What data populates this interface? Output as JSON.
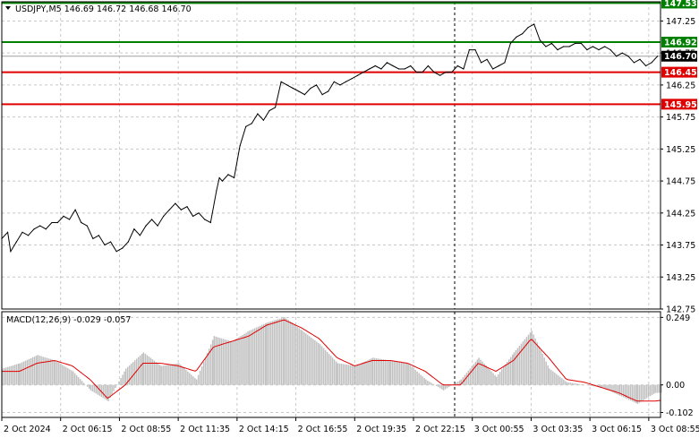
{
  "header": {
    "main_title": "USDJPY,M5  146.69 146.72 146.68 146.70",
    "macd_title": "MACD(12,26,9) -0.029 -0.057"
  },
  "colors": {
    "price_line": "#000000",
    "grid": "#c8c8c8",
    "green_level": "#008000",
    "red_level": "#e00000",
    "macd_hist": "#c0c0c0",
    "macd_signal": "#e00000",
    "current_price_bg": "#000000"
  },
  "chart_data": [
    {
      "type": "line",
      "symbol": "USDJPY",
      "timeframe": "M5",
      "ylim": [
        142.75,
        147.55
      ],
      "y_ticks": [
        "147.25",
        "146.75",
        "146.25",
        "145.75",
        "145.25",
        "144.75",
        "144.25",
        "143.75",
        "143.25",
        "142.75"
      ],
      "x_ticks": [
        "2 Oct 2024",
        "2 Oct 06:15",
        "2 Oct 08:55",
        "2 Oct 11:35",
        "2 Oct 14:15",
        "2 Oct 16:55",
        "2 Oct 19:35",
        "2 Oct 22:15",
        "3 Oct 00:55",
        "3 Oct 03:35",
        "3 Oct 06:15",
        "3 Oct 08:55"
      ],
      "x_range": [
        0,
        11.2
      ],
      "grid": true,
      "levels": [
        {
          "value": 147.53,
          "label": "147.53",
          "color": "green"
        },
        {
          "value": 146.92,
          "label": "146.92",
          "color": "green"
        },
        {
          "value": 146.45,
          "label": "146.45",
          "color": "red"
        },
        {
          "value": 145.95,
          "label": "145.95",
          "color": "red"
        }
      ],
      "current_price": {
        "value": 146.7,
        "label": "146.70"
      },
      "marker_x": 7.7,
      "x": [
        0,
        0.1,
        0.15,
        0.25,
        0.35,
        0.45,
        0.55,
        0.65,
        0.75,
        0.85,
        0.95,
        1.05,
        1.15,
        1.25,
        1.35,
        1.45,
        1.55,
        1.65,
        1.75,
        1.85,
        1.95,
        2.05,
        2.15,
        2.25,
        2.35,
        2.45,
        2.55,
        2.65,
        2.75,
        2.85,
        2.95,
        3.05,
        3.15,
        3.25,
        3.35,
        3.45,
        3.55,
        3.65,
        3.7,
        3.75,
        3.85,
        3.95,
        4.05,
        4.15,
        4.25,
        4.35,
        4.45,
        4.55,
        4.65,
        4.75,
        4.85,
        4.95,
        5.05,
        5.15,
        5.25,
        5.35,
        5.45,
        5.55,
        5.65,
        5.75,
        5.85,
        5.95,
        6.05,
        6.15,
        6.25,
        6.35,
        6.45,
        6.55,
        6.65,
        6.75,
        6.85,
        6.95,
        7.05,
        7.15,
        7.25,
        7.35,
        7.45,
        7.55,
        7.65,
        7.75,
        7.85,
        7.95,
        8.05,
        8.15,
        8.25,
        8.35,
        8.45,
        8.55,
        8.65,
        8.75,
        8.85,
        8.95,
        9.05,
        9.15,
        9.25,
        9.35,
        9.45,
        9.55,
        9.65,
        9.75,
        9.85,
        9.95,
        10.05,
        10.15,
        10.25,
        10.35,
        10.45,
        10.55,
        10.65,
        10.75,
        10.85,
        10.95,
        11.05,
        11.15
      ],
      "y": [
        143.85,
        143.95,
        143.65,
        143.8,
        143.95,
        143.9,
        144.0,
        144.05,
        144.0,
        144.1,
        144.1,
        144.2,
        144.15,
        144.3,
        144.1,
        144.05,
        143.85,
        143.9,
        143.75,
        143.8,
        143.65,
        143.7,
        143.8,
        144.0,
        143.9,
        144.05,
        144.15,
        144.05,
        144.2,
        144.3,
        144.4,
        144.3,
        144.35,
        144.2,
        144.25,
        144.15,
        144.1,
        144.6,
        144.8,
        144.75,
        144.85,
        144.8,
        145.3,
        145.6,
        145.65,
        145.8,
        145.7,
        145.85,
        145.9,
        146.3,
        146.25,
        146.2,
        146.15,
        146.1,
        146.2,
        146.25,
        146.1,
        146.15,
        146.3,
        146.25,
        146.3,
        146.35,
        146.4,
        146.45,
        146.5,
        146.55,
        146.5,
        146.6,
        146.55,
        146.5,
        146.5,
        146.55,
        146.45,
        146.45,
        146.55,
        146.45,
        146.4,
        146.45,
        146.45,
        146.55,
        146.5,
        146.8,
        146.8,
        146.6,
        146.65,
        146.5,
        146.55,
        146.6,
        146.9,
        147.0,
        147.05,
        147.15,
        147.2,
        146.95,
        146.85,
        146.9,
        146.8,
        146.85,
        146.85,
        146.9,
        146.9,
        146.8,
        146.85,
        146.8,
        146.85,
        146.8,
        146.7,
        146.75,
        146.7,
        146.6,
        146.65,
        146.55,
        146.6,
        146.7
      ]
    },
    {
      "type": "bar",
      "name": "MACD(12,26,9)",
      "ylim": [
        -0.12,
        0.27
      ],
      "y_ticks": [
        "0.249",
        "0.00",
        "-0.102"
      ],
      "grid": true,
      "x": [
        0,
        0.3,
        0.6,
        0.9,
        1.2,
        1.5,
        1.8,
        2.1,
        2.4,
        2.7,
        3.0,
        3.3,
        3.6,
        3.9,
        4.2,
        4.5,
        4.8,
        5.1,
        5.4,
        5.7,
        6.0,
        6.3,
        6.6,
        6.9,
        7.2,
        7.5,
        7.8,
        8.1,
        8.4,
        8.7,
        9.0,
        9.3,
        9.6,
        9.9,
        10.2,
        10.5,
        10.8,
        11.1,
        11.2
      ],
      "values": [
        0.06,
        0.08,
        0.11,
        0.09,
        0.05,
        -0.02,
        -0.06,
        0.06,
        0.12,
        0.07,
        0.08,
        0.02,
        0.18,
        0.16,
        0.2,
        0.23,
        0.25,
        0.2,
        0.15,
        0.08,
        0.07,
        0.1,
        0.09,
        0.08,
        0.02,
        -0.02,
        0.02,
        0.1,
        0.03,
        0.12,
        0.2,
        0.06,
        0.01,
        0.0,
        -0.01,
        -0.04,
        -0.07,
        -0.03,
        -0.029
      ],
      "signal": [
        0.05,
        0.05,
        0.08,
        0.09,
        0.07,
        0.02,
        -0.05,
        0.0,
        0.08,
        0.08,
        0.07,
        0.05,
        0.14,
        0.16,
        0.18,
        0.22,
        0.24,
        0.21,
        0.17,
        0.1,
        0.07,
        0.09,
        0.09,
        0.08,
        0.05,
        0.0,
        0.0,
        0.08,
        0.05,
        0.09,
        0.17,
        0.1,
        0.02,
        0.01,
        -0.01,
        -0.03,
        -0.06,
        -0.06,
        -0.057
      ]
    }
  ]
}
